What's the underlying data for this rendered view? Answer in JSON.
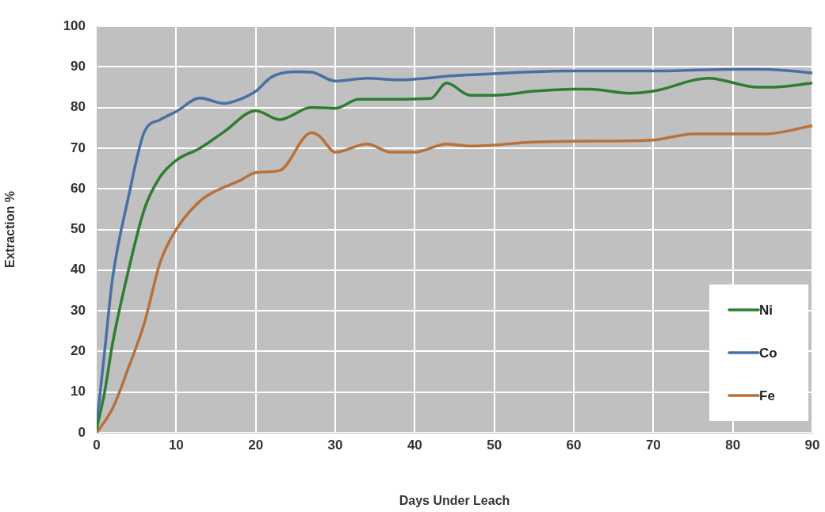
{
  "chart_data": {
    "type": "line",
    "xlabel": "Days Under Leach",
    "ylabel": "Extraction %",
    "xlim": [
      0,
      90
    ],
    "xticks": [
      0,
      10,
      20,
      30,
      40,
      50,
      60,
      70,
      80,
      90
    ],
    "ylim": [
      0,
      100
    ],
    "yticks": [
      0,
      10,
      20,
      30,
      40,
      50,
      60,
      70,
      80,
      90,
      100
    ],
    "grid": true,
    "legend": "bottom right",
    "marker": "none",
    "line_style": "solid",
    "series": [
      {
        "name": "Ni",
        "color": "#2e7d32",
        "x": [
          0,
          1,
          2,
          4,
          6,
          8,
          10,
          13,
          16,
          20,
          23,
          27,
          30,
          33,
          36,
          42,
          44,
          47,
          50,
          55,
          60,
          62,
          67,
          70,
          77,
          83,
          85,
          90
        ],
        "values": [
          1,
          10,
          22,
          40,
          55,
          63,
          67,
          70,
          74,
          79.2,
          77,
          80,
          79.8,
          82,
          82,
          82.2,
          86,
          83,
          83,
          84,
          84.5,
          84.5,
          83.5,
          84,
          87.2,
          85,
          85,
          86
        ]
      },
      {
        "name": "Co",
        "color": "#4a6fa5",
        "x": [
          0,
          1,
          2,
          4,
          6,
          8,
          10,
          13,
          16,
          18,
          20,
          22,
          25,
          27,
          30,
          34,
          38,
          45,
          60,
          70,
          80,
          84,
          90
        ],
        "values": [
          2,
          20,
          38,
          58,
          74,
          77,
          79,
          82.3,
          81,
          82,
          84,
          87.5,
          88.8,
          88.7,
          86.5,
          87.2,
          86.8,
          87.8,
          89,
          89,
          89.4,
          89.4,
          88.5
        ]
      },
      {
        "name": "Fe",
        "color": "#b8713a",
        "x": [
          0,
          2,
          4,
          6,
          8,
          10,
          13,
          15,
          18,
          20,
          23,
          27,
          28,
          30,
          34,
          37,
          40,
          44,
          47,
          55,
          60,
          70,
          75,
          80,
          84,
          90
        ],
        "values": [
          0,
          6,
          16,
          27,
          42,
          50,
          57,
          59.5,
          62,
          64,
          64.5,
          73.8,
          73,
          69,
          71,
          69,
          69,
          71,
          70.5,
          71.5,
          71.7,
          72,
          73.5,
          73.5,
          73.5,
          75.5
        ]
      }
    ]
  }
}
